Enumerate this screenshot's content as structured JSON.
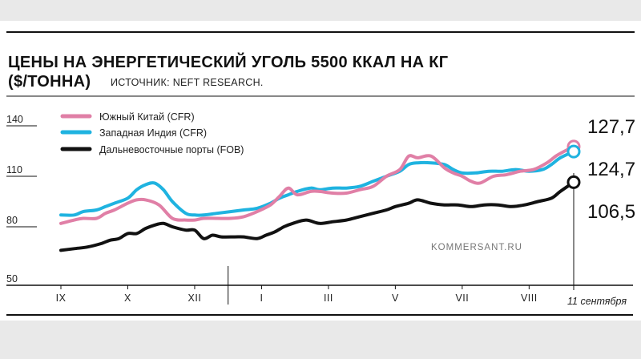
{
  "chart_data": {
    "type": "line",
    "title_line1": "ЦЕНЫ НА ЭНЕРГЕТИЧЕСКИЙ УГОЛЬ 5500 ККАЛ НА КГ",
    "title_line2": "($/ТОННА)",
    "source": "ИСТОЧНИК: NEFT RESEARCH.",
    "credit": "KOMMERSANT.RU",
    "ylim": [
      50,
      150
    ],
    "yticks": [
      50,
      80,
      110,
      140
    ],
    "ytick_labels": [
      "50",
      "80",
      "110",
      "140"
    ],
    "xlim": [
      0,
      12.2
    ],
    "xticks": [
      {
        "x": 0,
        "label": "IX"
      },
      {
        "x": 1.5,
        "label": "X"
      },
      {
        "x": 3.0,
        "label": "XII"
      },
      {
        "x": 4.5,
        "label": "I"
      },
      {
        "x": 6.0,
        "label": "III"
      },
      {
        "x": 7.5,
        "label": "V"
      },
      {
        "x": 9.0,
        "label": "VII"
      },
      {
        "x": 10.5,
        "label": "VIII"
      },
      {
        "x": 11.5,
        "label": "11 сентября"
      }
    ],
    "year_divider_x": 3.75,
    "grid": false,
    "legend_position": "top-left",
    "series": [
      {
        "name": "Южный Китай (CFR)",
        "color": "#e07fa6",
        "end_label": "127,7",
        "x": [
          0,
          0.3,
          0.5,
          0.8,
          1.0,
          1.2,
          1.5,
          1.7,
          1.9,
          2.2,
          2.5,
          2.8,
          3.0,
          3.2,
          3.5,
          3.8,
          4.1,
          4.4,
          4.7,
          4.9,
          5.1,
          5.3,
          5.6,
          5.8,
          6.1,
          6.4,
          6.7,
          7.0,
          7.3,
          7.6,
          7.8,
          8.0,
          8.3,
          8.6,
          8.8,
          9.0,
          9.2,
          9.4,
          9.7,
          10.0,
          10.3,
          10.6,
          10.9,
          11.1,
          11.3,
          11.5
        ],
        "y": [
          82,
          84,
          85,
          85,
          88,
          90,
          94,
          96,
          96,
          93,
          85,
          84,
          84,
          85,
          85,
          85,
          86,
          89,
          93,
          98,
          103,
          99,
          101,
          101,
          100,
          100,
          102,
          104,
          110,
          114,
          122,
          121,
          122,
          115,
          112,
          110,
          107,
          106,
          110,
          111,
          113,
          114,
          118,
          122,
          125,
          127.7
        ]
      },
      {
        "name": "Западная Индия (CFR)",
        "color": "#1fb3e0",
        "end_label": "124,7",
        "x": [
          0,
          0.3,
          0.5,
          0.8,
          1.0,
          1.2,
          1.5,
          1.7,
          1.9,
          2.1,
          2.3,
          2.5,
          2.8,
          3.0,
          3.2,
          3.5,
          3.8,
          4.1,
          4.4,
          4.7,
          4.9,
          5.1,
          5.3,
          5.6,
          5.8,
          6.1,
          6.4,
          6.7,
          7.0,
          7.3,
          7.6,
          7.8,
          8.0,
          8.3,
          8.6,
          8.8,
          9.0,
          9.3,
          9.6,
          9.9,
          10.2,
          10.5,
          10.8,
          11.0,
          11.2,
          11.5
        ],
        "y": [
          87,
          87,
          89,
          90,
          92,
          94,
          97,
          102,
          105,
          106,
          102,
          95,
          88,
          87,
          87,
          88,
          89,
          90,
          91,
          94,
          97,
          99,
          101,
          103,
          102,
          103,
          103,
          104,
          107,
          110,
          113,
          117,
          118,
          118,
          117,
          114,
          112,
          112,
          113,
          113,
          114,
          113,
          114,
          117,
          121,
          124.7
        ]
      },
      {
        "name": "Дальневосточные порты (FOB)",
        "color": "#111111",
        "end_label": "106,5",
        "x": [
          0,
          0.3,
          0.6,
          0.9,
          1.1,
          1.3,
          1.5,
          1.7,
          1.9,
          2.1,
          2.3,
          2.5,
          2.8,
          3.0,
          3.2,
          3.4,
          3.6,
          3.9,
          4.1,
          4.4,
          4.6,
          4.8,
          5.0,
          5.2,
          5.5,
          5.8,
          6.1,
          6.4,
          6.7,
          7.0,
          7.3,
          7.5,
          7.8,
          8.0,
          8.3,
          8.6,
          8.9,
          9.2,
          9.5,
          9.8,
          10.1,
          10.4,
          10.7,
          11.0,
          11.2,
          11.5
        ],
        "y": [
          66,
          67,
          68,
          70,
          72,
          73,
          76,
          76,
          79,
          81,
          82,
          80,
          78,
          78,
          73,
          75,
          74,
          74,
          74,
          73,
          75,
          77,
          80,
          82,
          84,
          82,
          83,
          84,
          86,
          88,
          90,
          92,
          94,
          96,
          94,
          93,
          93,
          92,
          93,
          93,
          92,
          93,
          95,
          97,
          101,
          106.5
        ]
      }
    ]
  }
}
